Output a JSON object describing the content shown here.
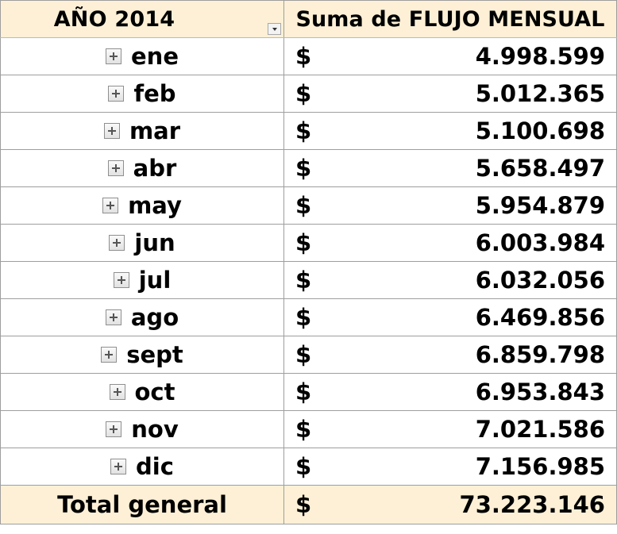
{
  "header": {
    "row_label": "AÑO 2014",
    "value_label": "Suma de FLUJO MENSUAL"
  },
  "currency_symbol": "$",
  "rows": [
    {
      "month": "ene",
      "value": "4.998.599"
    },
    {
      "month": "feb",
      "value": "5.012.365"
    },
    {
      "month": "mar",
      "value": "5.100.698"
    },
    {
      "month": "abr",
      "value": "5.658.497"
    },
    {
      "month": "may",
      "value": "5.954.879"
    },
    {
      "month": "jun",
      "value": "6.003.984"
    },
    {
      "month": "jul",
      "value": "6.032.056"
    },
    {
      "month": "ago",
      "value": "6.469.856"
    },
    {
      "month": "sept",
      "value": "6.859.798"
    },
    {
      "month": "oct",
      "value": "6.953.843"
    },
    {
      "month": "nov",
      "value": "7.021.586"
    },
    {
      "month": "dic",
      "value": "7.156.985"
    }
  ],
  "total": {
    "label": "Total general",
    "value": "73.223.146"
  },
  "icons": {
    "expand": "expand-plus-icon",
    "filter": "filter-dropdown-icon"
  },
  "colors": {
    "header_background": "#fdf0d6",
    "grid_line": "#9e9e9e",
    "text": "#000000"
  }
}
